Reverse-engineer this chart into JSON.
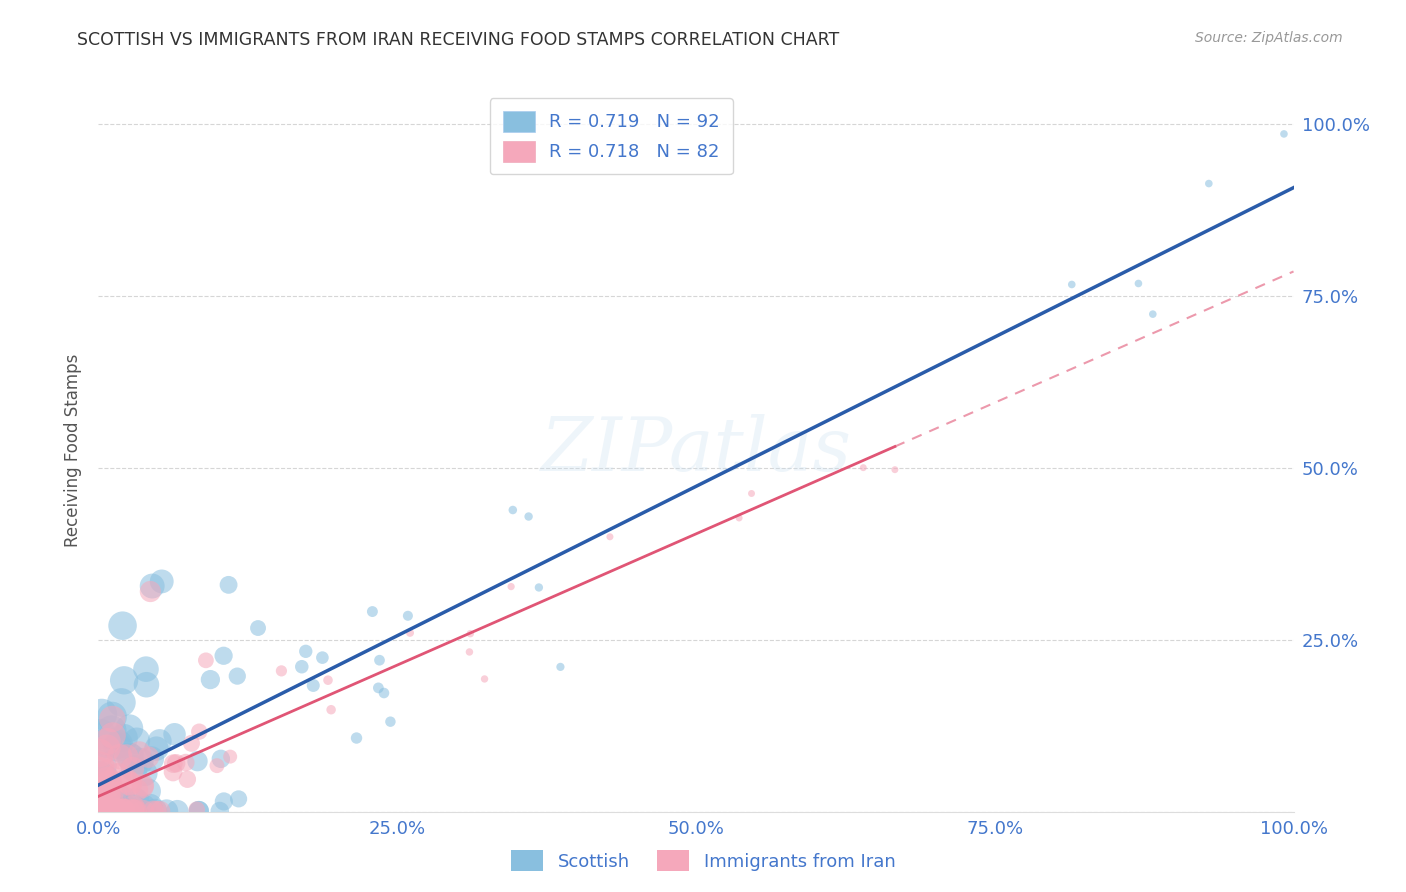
{
  "title": "SCOTTISH VS IMMIGRANTS FROM IRAN RECEIVING FOOD STAMPS CORRELATION CHART",
  "source": "Source: ZipAtlas.com",
  "ylabel": "Receiving Food Stamps",
  "watermark": "ZIPatlas",
  "legend1_label": "R = 0.719   N = 92",
  "legend2_label": "R = 0.718   N = 82",
  "scottish_color": "#89bfdf",
  "iran_color": "#f5a8bb",
  "scottish_line_color": "#2a5caa",
  "iran_line_color": "#e05575",
  "legend_color_blue": "#89bfdf",
  "legend_color_pink": "#f5a8bb",
  "blue_R": 0.719,
  "blue_N": 92,
  "pink_R": 0.718,
  "pink_N": 82,
  "background_color": "#ffffff",
  "grid_color": "#cccccc",
  "title_color": "#333333",
  "source_color": "#999999",
  "tick_label_color": "#4477cc",
  "axis_label_color": "#555555"
}
